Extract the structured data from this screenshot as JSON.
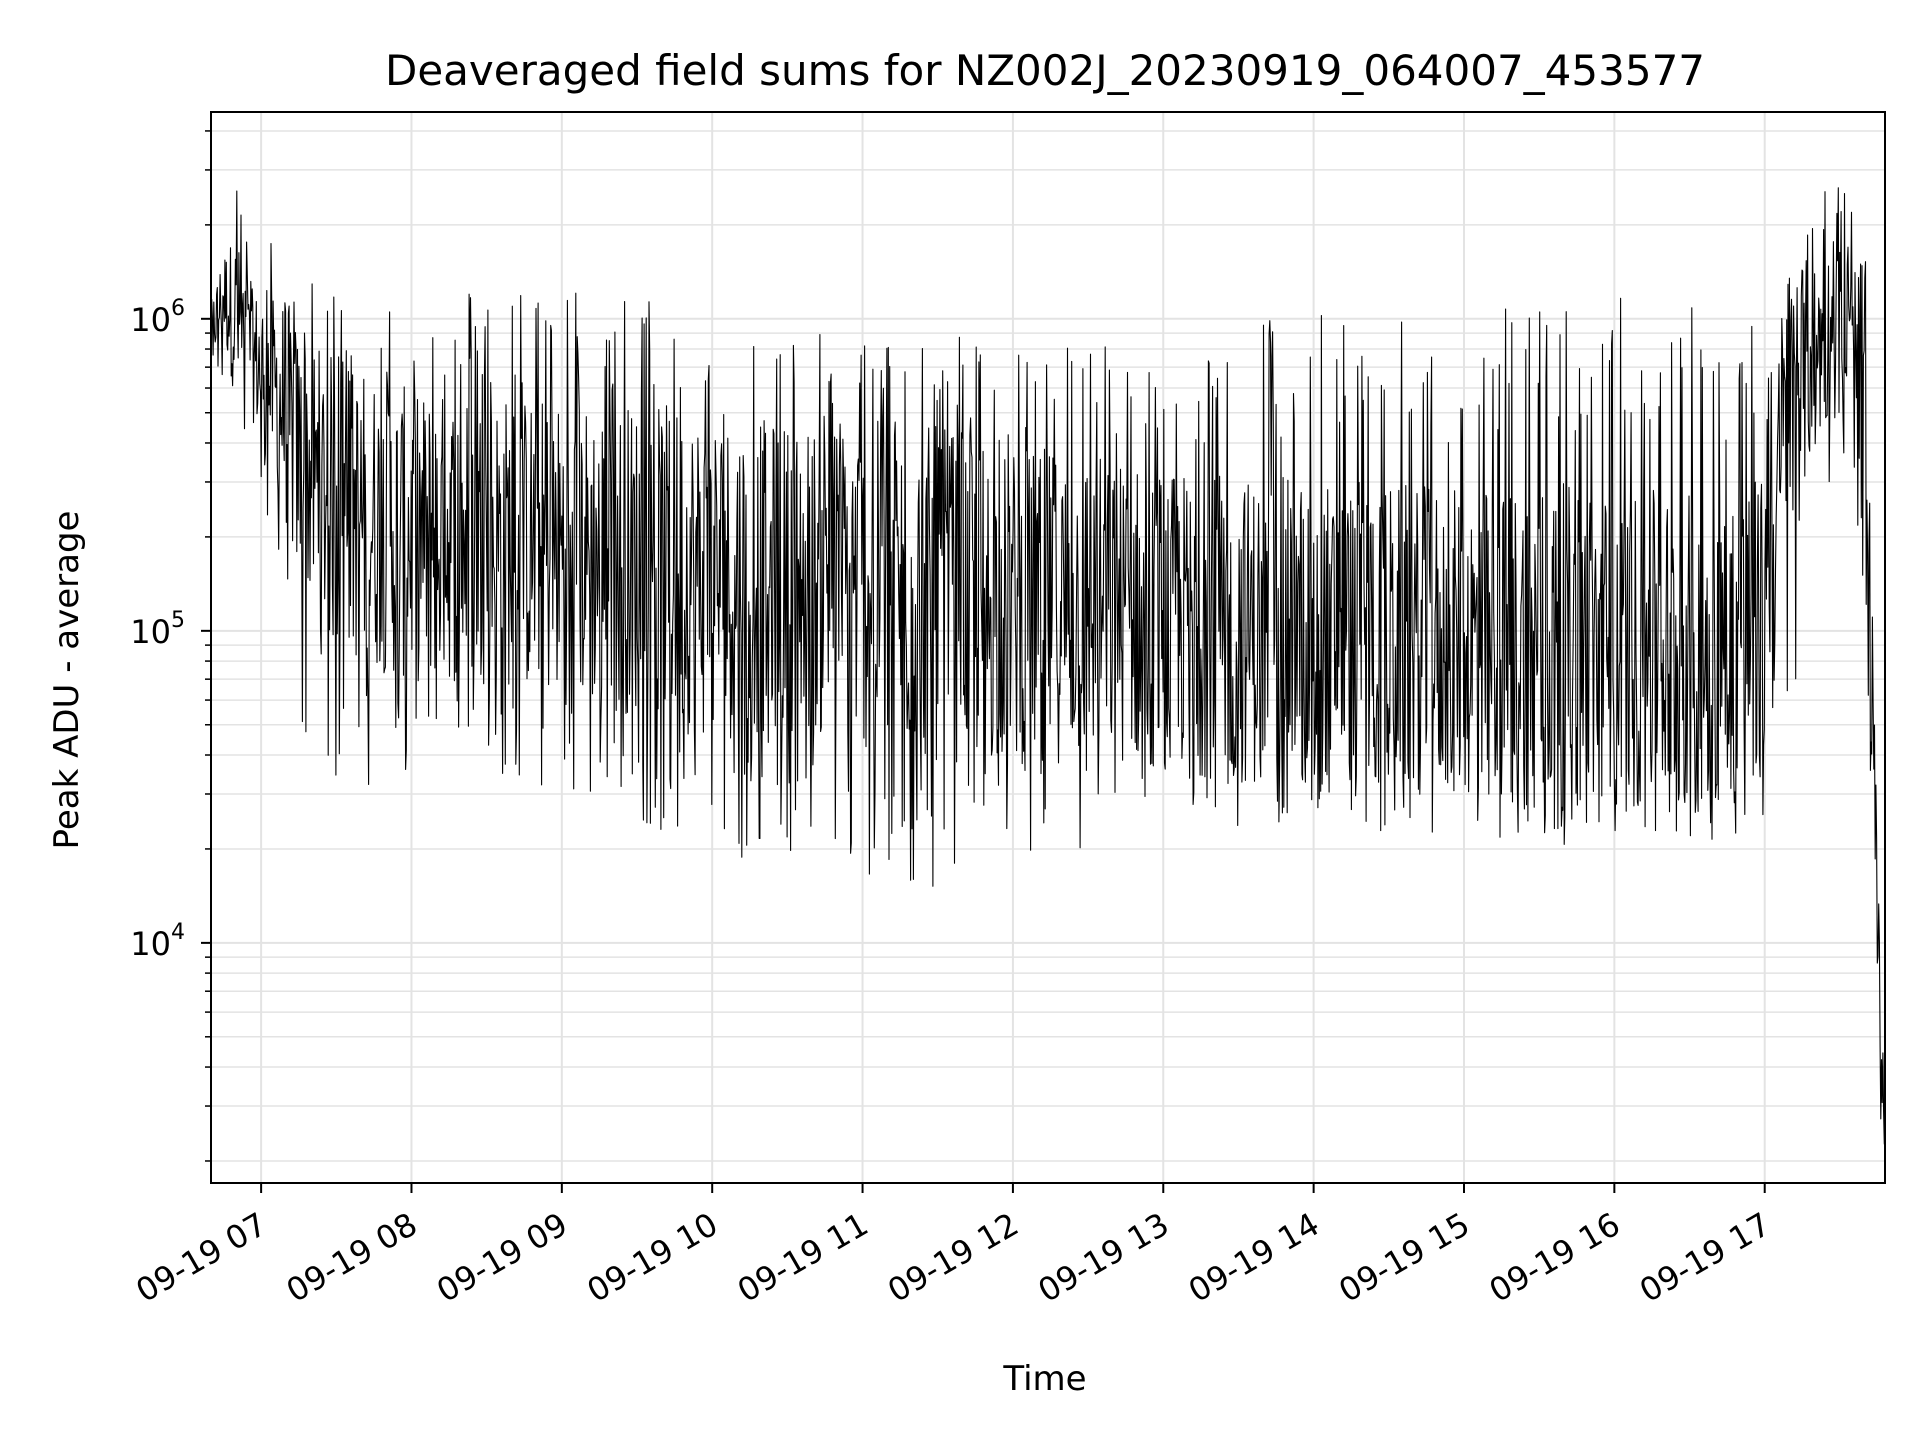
{
  "chart_data": {
    "type": "line",
    "title": "Deaveraged field sums for NZ002J_20230919_064007_453577",
    "xlabel": "Time",
    "ylabel": "Peak ADU - average",
    "x_scale": "time",
    "y_scale": "log",
    "grid": true,
    "line_color": "#000000",
    "grid_color": "#e3e3e3",
    "xlim": [
      "2023-09-19 06:40",
      "2023-09-19 17:48"
    ],
    "ylim": [
      1700,
      4600000
    ],
    "x_ticks": [
      "09-19 07",
      "09-19 08",
      "09-19 09",
      "09-19 10",
      "09-19 11",
      "09-19 12",
      "09-19 13",
      "09-19 14",
      "09-19 15",
      "09-19 16",
      "09-19 17"
    ],
    "y_ticks": [
      {
        "base": "10",
        "exp": "4",
        "value": 10000
      },
      {
        "base": "10",
        "exp": "5",
        "value": 100000
      },
      {
        "base": "10",
        "exp": "6",
        "value": 1000000
      }
    ],
    "series": [
      {
        "x": [
          "2023-09-19 06:40",
          "2023-09-19 06:45",
          "2023-09-19 06:50",
          "2023-09-19 06:55",
          "2023-09-19 07:00",
          "2023-09-19 07:05",
          "2023-09-19 07:10",
          "2023-09-19 07:15",
          "2023-09-19 07:30",
          "2023-09-19 08:00",
          "2023-09-19 08:30",
          "2023-09-19 09:00",
          "2023-09-19 09:30",
          "2023-09-19 10:00",
          "2023-09-19 10:30",
          "2023-09-19 11:00",
          "2023-09-19 11:30",
          "2023-09-19 12:00",
          "2023-09-19 12:30",
          "2023-09-19 13:00",
          "2023-09-19 13:30",
          "2023-09-19 14:00",
          "2023-09-19 14:30",
          "2023-09-19 15:00",
          "2023-09-19 15:30",
          "2023-09-19 16:00",
          "2023-09-19 16:30",
          "2023-09-19 17:00",
          "2023-09-19 17:10",
          "2023-09-19 17:20",
          "2023-09-19 17:30",
          "2023-09-19 17:40",
          "2023-09-19 17:45",
          "2023-09-19 17:48"
        ],
        "y": [
          900000,
          1200000,
          1000000,
          800000,
          700000,
          600000,
          500000,
          350000,
          250000,
          200000,
          200000,
          180000,
          170000,
          150000,
          150000,
          140000,
          130000,
          120000,
          120000,
          110000,
          100000,
          100000,
          95000,
          90000,
          90000,
          85000,
          85000,
          100000,
          500000,
          800000,
          900000,
          600000,
          12000,
          2200
        ],
        "upper": [
          1500000,
          1800000,
          3300000,
          1600000,
          1600000,
          1900000,
          1400000,
          1300000,
          1300000,
          1200000,
          1300000,
          1300000,
          1200000,
          1100000,
          900000,
          900000,
          900000,
          900000,
          900000,
          800000,
          1000000,
          1100000,
          1000000,
          1000000,
          1200000,
          1200000,
          1200000,
          1000000,
          1800000,
          2600000,
          2900000,
          1900000,
          18000,
          3000
        ],
        "lower": [
          700000,
          600000,
          400000,
          350000,
          250000,
          200000,
          80000,
          50000,
          32000,
          32000,
          35000,
          30000,
          25000,
          18000,
          20000,
          15000,
          14000,
          18000,
          19000,
          20000,
          22000,
          25000,
          22000,
          22000,
          20000,
          22000,
          21000,
          22000,
          35000,
          300000,
          300000,
          100000,
          2500,
          2000
        ]
      }
    ]
  }
}
